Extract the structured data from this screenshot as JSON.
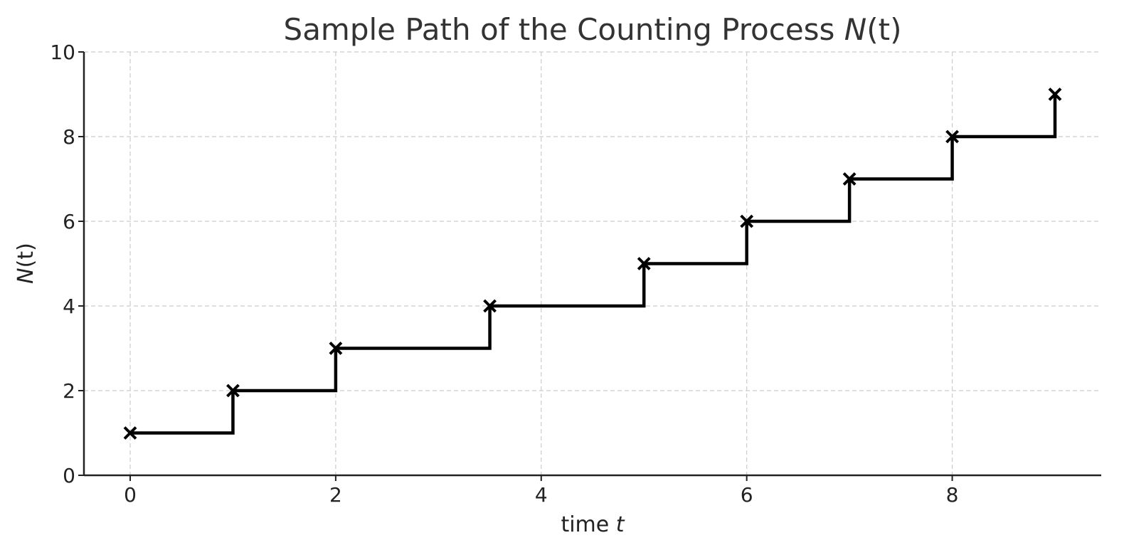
{
  "chart_data": {
    "type": "line",
    "style": "step-post",
    "title_prefix": "Sample Path of the Counting Process ",
    "title_math_var": "N",
    "title_math_rest": "(t)",
    "xlabel_prefix": "time ",
    "xlabel_math": "t",
    "ylabel_math_var": "N",
    "ylabel_math_rest": "(t)",
    "x": [
      0,
      1,
      2,
      3.5,
      5,
      6,
      7,
      8,
      9
    ],
    "y": [
      1,
      2,
      3,
      4,
      5,
      6,
      7,
      8,
      9
    ],
    "marker": "x",
    "line_color": "#000000",
    "xlim": [
      -0.45,
      9.45
    ],
    "ylim": [
      0,
      10
    ],
    "xticks": [
      0,
      2,
      4,
      6,
      8
    ],
    "yticks": [
      0,
      2,
      4,
      6,
      8,
      10
    ],
    "grid": true,
    "legend": "none"
  }
}
